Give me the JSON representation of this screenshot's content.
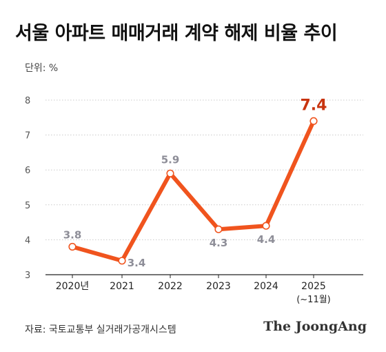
{
  "header": {
    "title": "서울 아파트 매매거래 계약 해제 비율 추이",
    "unit": "단위: %"
  },
  "footer": {
    "source": "자료: 국토교통부 실거래가공개시스템",
    "brand": "The JoongAng"
  },
  "colors": {
    "line": "#f0541e",
    "highlight_label": "#c8340f",
    "point_label": "#8e8e98",
    "grid": "#c9c9c9",
    "axis": "#222222"
  },
  "chart_data": {
    "type": "line",
    "title": "서울 아파트 매매거래 계약 해제 비율 추이",
    "ylabel": "단위: %",
    "categories": [
      "2020년",
      "2021",
      "2022",
      "2023",
      "2024",
      "2025"
    ],
    "category_sublabels": [
      "",
      "",
      "",
      "",
      "",
      "(~11월)"
    ],
    "series": [
      {
        "values": [
          3.8,
          3.4,
          5.9,
          4.3,
          4.4,
          7.4
        ]
      }
    ],
    "value_labels": [
      "3.8",
      "3.4",
      "5.9",
      "4.3",
      "4.4",
      "7.4"
    ],
    "highlight_index": 5,
    "yticks": [
      "3",
      "4",
      "5",
      "6",
      "7",
      "8"
    ],
    "ylim": [
      3,
      8
    ],
    "grid": true,
    "grid_style": "dotted horizontal"
  }
}
